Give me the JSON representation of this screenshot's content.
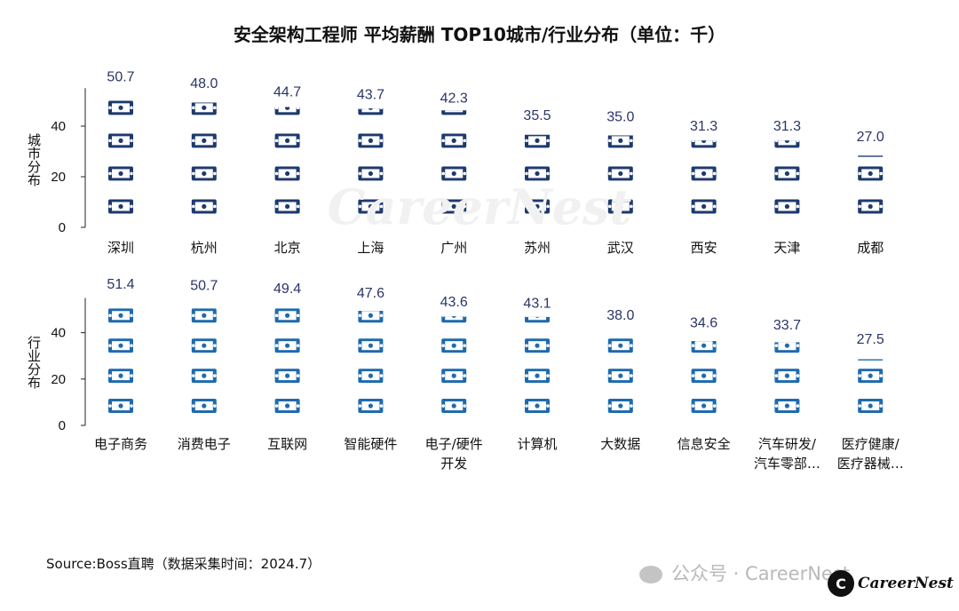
{
  "title": "安全架构工程师 平均薪酬 TOP10城市/行业分布（单位：千）",
  "source": "Source:Boss直聘（数据采集时间：2024.7）",
  "watermark": {
    "wechat": "公众号 · CareerNest",
    "logo": "CareerNest",
    "logo_mark": "C",
    "center": "CareerNest"
  },
  "colors": {
    "icon_dark": "#1d3a6e",
    "icon_light": "#1f6aad",
    "label": "#2a3566"
  },
  "chart_data": [
    {
      "type": "bar",
      "style": "pictograph-stack",
      "ylabel": "城市分布",
      "ylim": [
        0,
        55
      ],
      "yticks": [
        0,
        20,
        40
      ],
      "categories": [
        "深圳",
        "杭州",
        "北京",
        "上海",
        "广州",
        "苏州",
        "武汉",
        "西安",
        "天津",
        "成都"
      ],
      "values": [
        50.7,
        48.0,
        44.7,
        43.7,
        42.3,
        35.5,
        35.0,
        31.3,
        31.3,
        27.0
      ],
      "value_labels": [
        "50.7",
        "48.0",
        "44.7",
        "43.7",
        "42.3",
        "35.5",
        "35.0",
        "31.3",
        "31.3",
        "27.0"
      ],
      "icon_color": "#1d3a6e"
    },
    {
      "type": "bar",
      "style": "pictograph-stack",
      "ylabel": "行业分布",
      "ylim": [
        0,
        55
      ],
      "yticks": [
        0,
        20,
        40
      ],
      "categories": [
        "电子商务",
        "消费电子",
        "互联网",
        "智能硬件",
        "电子/硬件开发",
        "计算机",
        "大数据",
        "信息安全",
        "汽车研发/汽车零部…",
        "医疗健康/医疗器械…"
      ],
      "category_lines": [
        [
          "电子商务"
        ],
        [
          "消费电子"
        ],
        [
          "互联网"
        ],
        [
          "智能硬件"
        ],
        [
          "电子/硬件",
          "开发"
        ],
        [
          "计算机"
        ],
        [
          "大数据"
        ],
        [
          "信息安全"
        ],
        [
          "汽车研发/",
          "汽车零部…"
        ],
        [
          "医疗健康/",
          "医疗器械…"
        ]
      ],
      "values": [
        51.4,
        50.7,
        49.4,
        47.6,
        43.6,
        43.1,
        38.0,
        34.6,
        33.7,
        27.5
      ],
      "value_labels": [
        "51.4",
        "50.7",
        "49.4",
        "47.6",
        "43.6",
        "43.1",
        "38.0",
        "34.6",
        "33.7",
        "27.5"
      ],
      "icon_color": "#1f6aad"
    }
  ]
}
